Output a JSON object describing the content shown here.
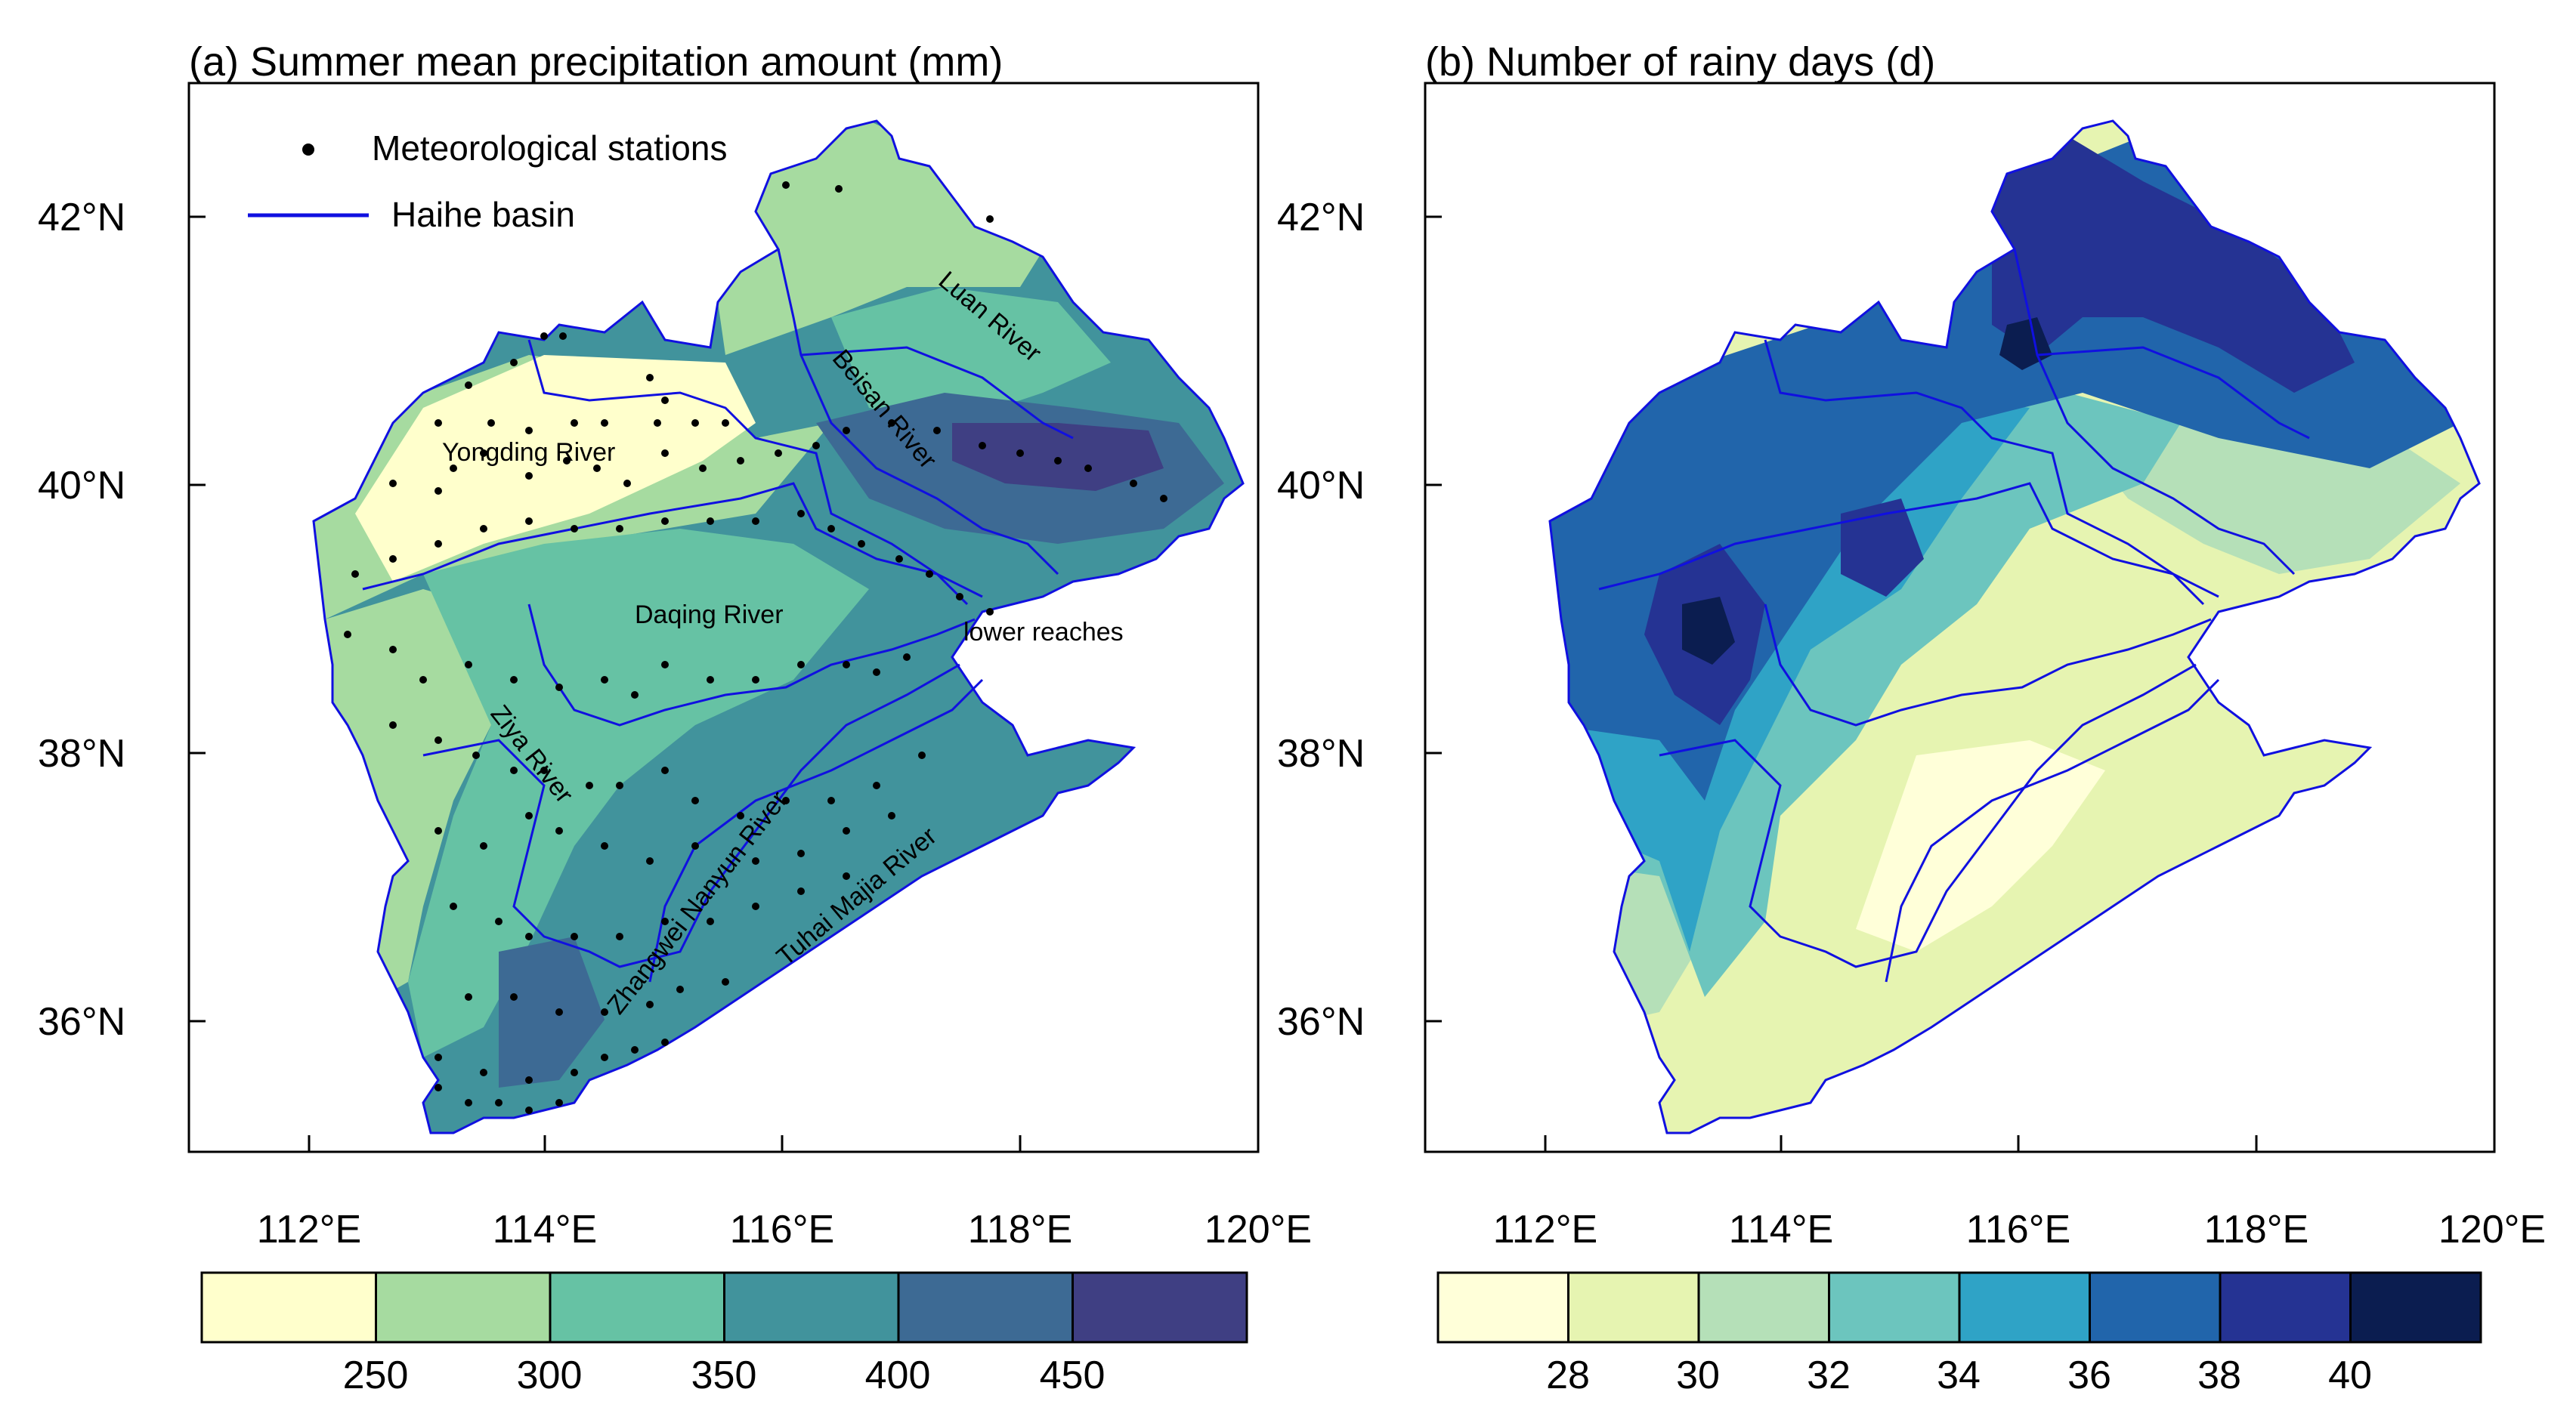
{
  "panel_a": {
    "title": "(a) Summer mean precipitation amount (mm)",
    "legend": {
      "stations": "Meteorological stations",
      "basin": "Haihe basin"
    },
    "rivers": [
      "Luan River",
      "Beisan River",
      "Yongding River",
      "Daqing River",
      "lower reaches",
      "Ziya River",
      "Zhangwei Nanyun River",
      "Tuhai Majia River"
    ],
    "lat_ticks": [
      "42°N",
      "40°N",
      "38°N",
      "36°N"
    ],
    "lon_ticks": [
      "112°E",
      "114°E",
      "116°E",
      "118°E",
      "120°E"
    ],
    "colorbar": {
      "labels": [
        "250",
        "300",
        "350",
        "400",
        "450"
      ],
      "colors": [
        "#ffffcc",
        "#a6dba0",
        "#66c2a4",
        "#41939c",
        "#3d6a94",
        "#3f3f83"
      ]
    }
  },
  "panel_b": {
    "title": "(b) Number of rainy days (d)",
    "lat_ticks": [
      "42°N",
      "40°N",
      "38°N",
      "36°N"
    ],
    "lon_ticks": [
      "112°E",
      "114°E",
      "116°E",
      "118°E",
      "120°E"
    ],
    "colorbar": {
      "labels": [
        "28",
        "30",
        "32",
        "34",
        "36",
        "38",
        "40"
      ],
      "colors": [
        "#ffffd9",
        "#e6f4b1",
        "#b5e0b8",
        "#6cc5be",
        "#2fa3c6",
        "#2165ab",
        "#253393",
        "#0b1d50"
      ]
    }
  },
  "colors": {
    "basin_line": "#1010e0",
    "station_dot": "#000000"
  }
}
